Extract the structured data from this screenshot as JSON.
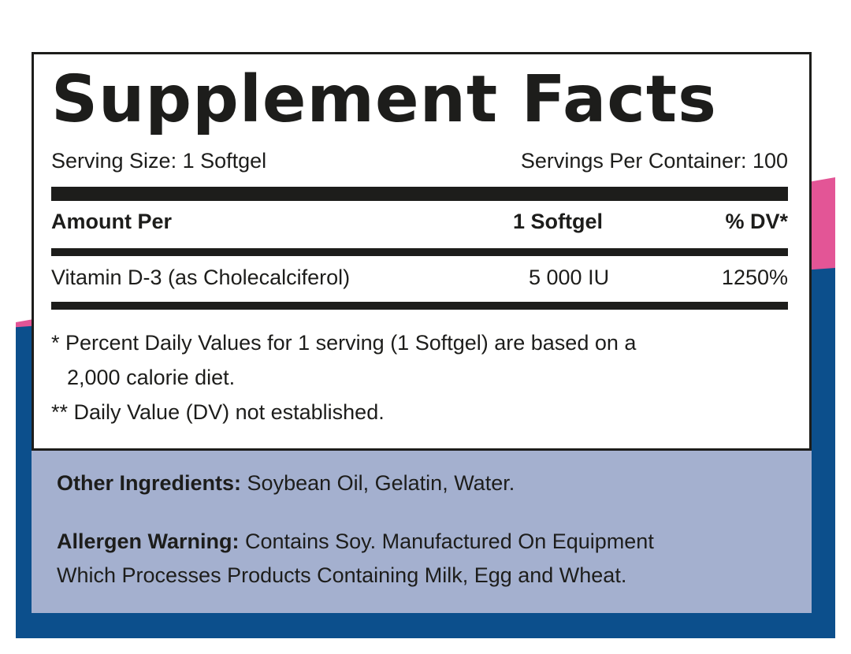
{
  "colors": {
    "pink_accent": "#e35596",
    "blue_band": "#0c4f8c",
    "info_panel": "#a4b0cf",
    "ink": "#1d1d1b"
  },
  "title": "Supplement Facts",
  "serving": {
    "size": "Serving Size: 1 Softgel",
    "per_container": "Servings Per Container: 100"
  },
  "table": {
    "headers": {
      "amount_per": "Amount Per",
      "serving": "1 Softgel",
      "dv": "% DV*"
    },
    "rows": [
      {
        "name": "Vitamin D-3 (as Cholecalciferol)",
        "amount": "5 000 IU",
        "dv": "1250%"
      }
    ]
  },
  "footnotes": {
    "percent_dv_line1": "* Percent Daily Values for 1 serving (1 Softgel) are based on a",
    "percent_dv_line2": "2,000 calorie diet.",
    "not_established": "** Daily Value (DV) not established."
  },
  "ingredients": {
    "other_label": "Other Ingredients:",
    "other_text": "Soybean Oil, Gelatin, Water.",
    "allergen_label": "Allergen Warning:",
    "allergen_text": "Contains Soy. Manufactured On Equipment Which Processes Products Containing Milk, Egg and Wheat."
  }
}
